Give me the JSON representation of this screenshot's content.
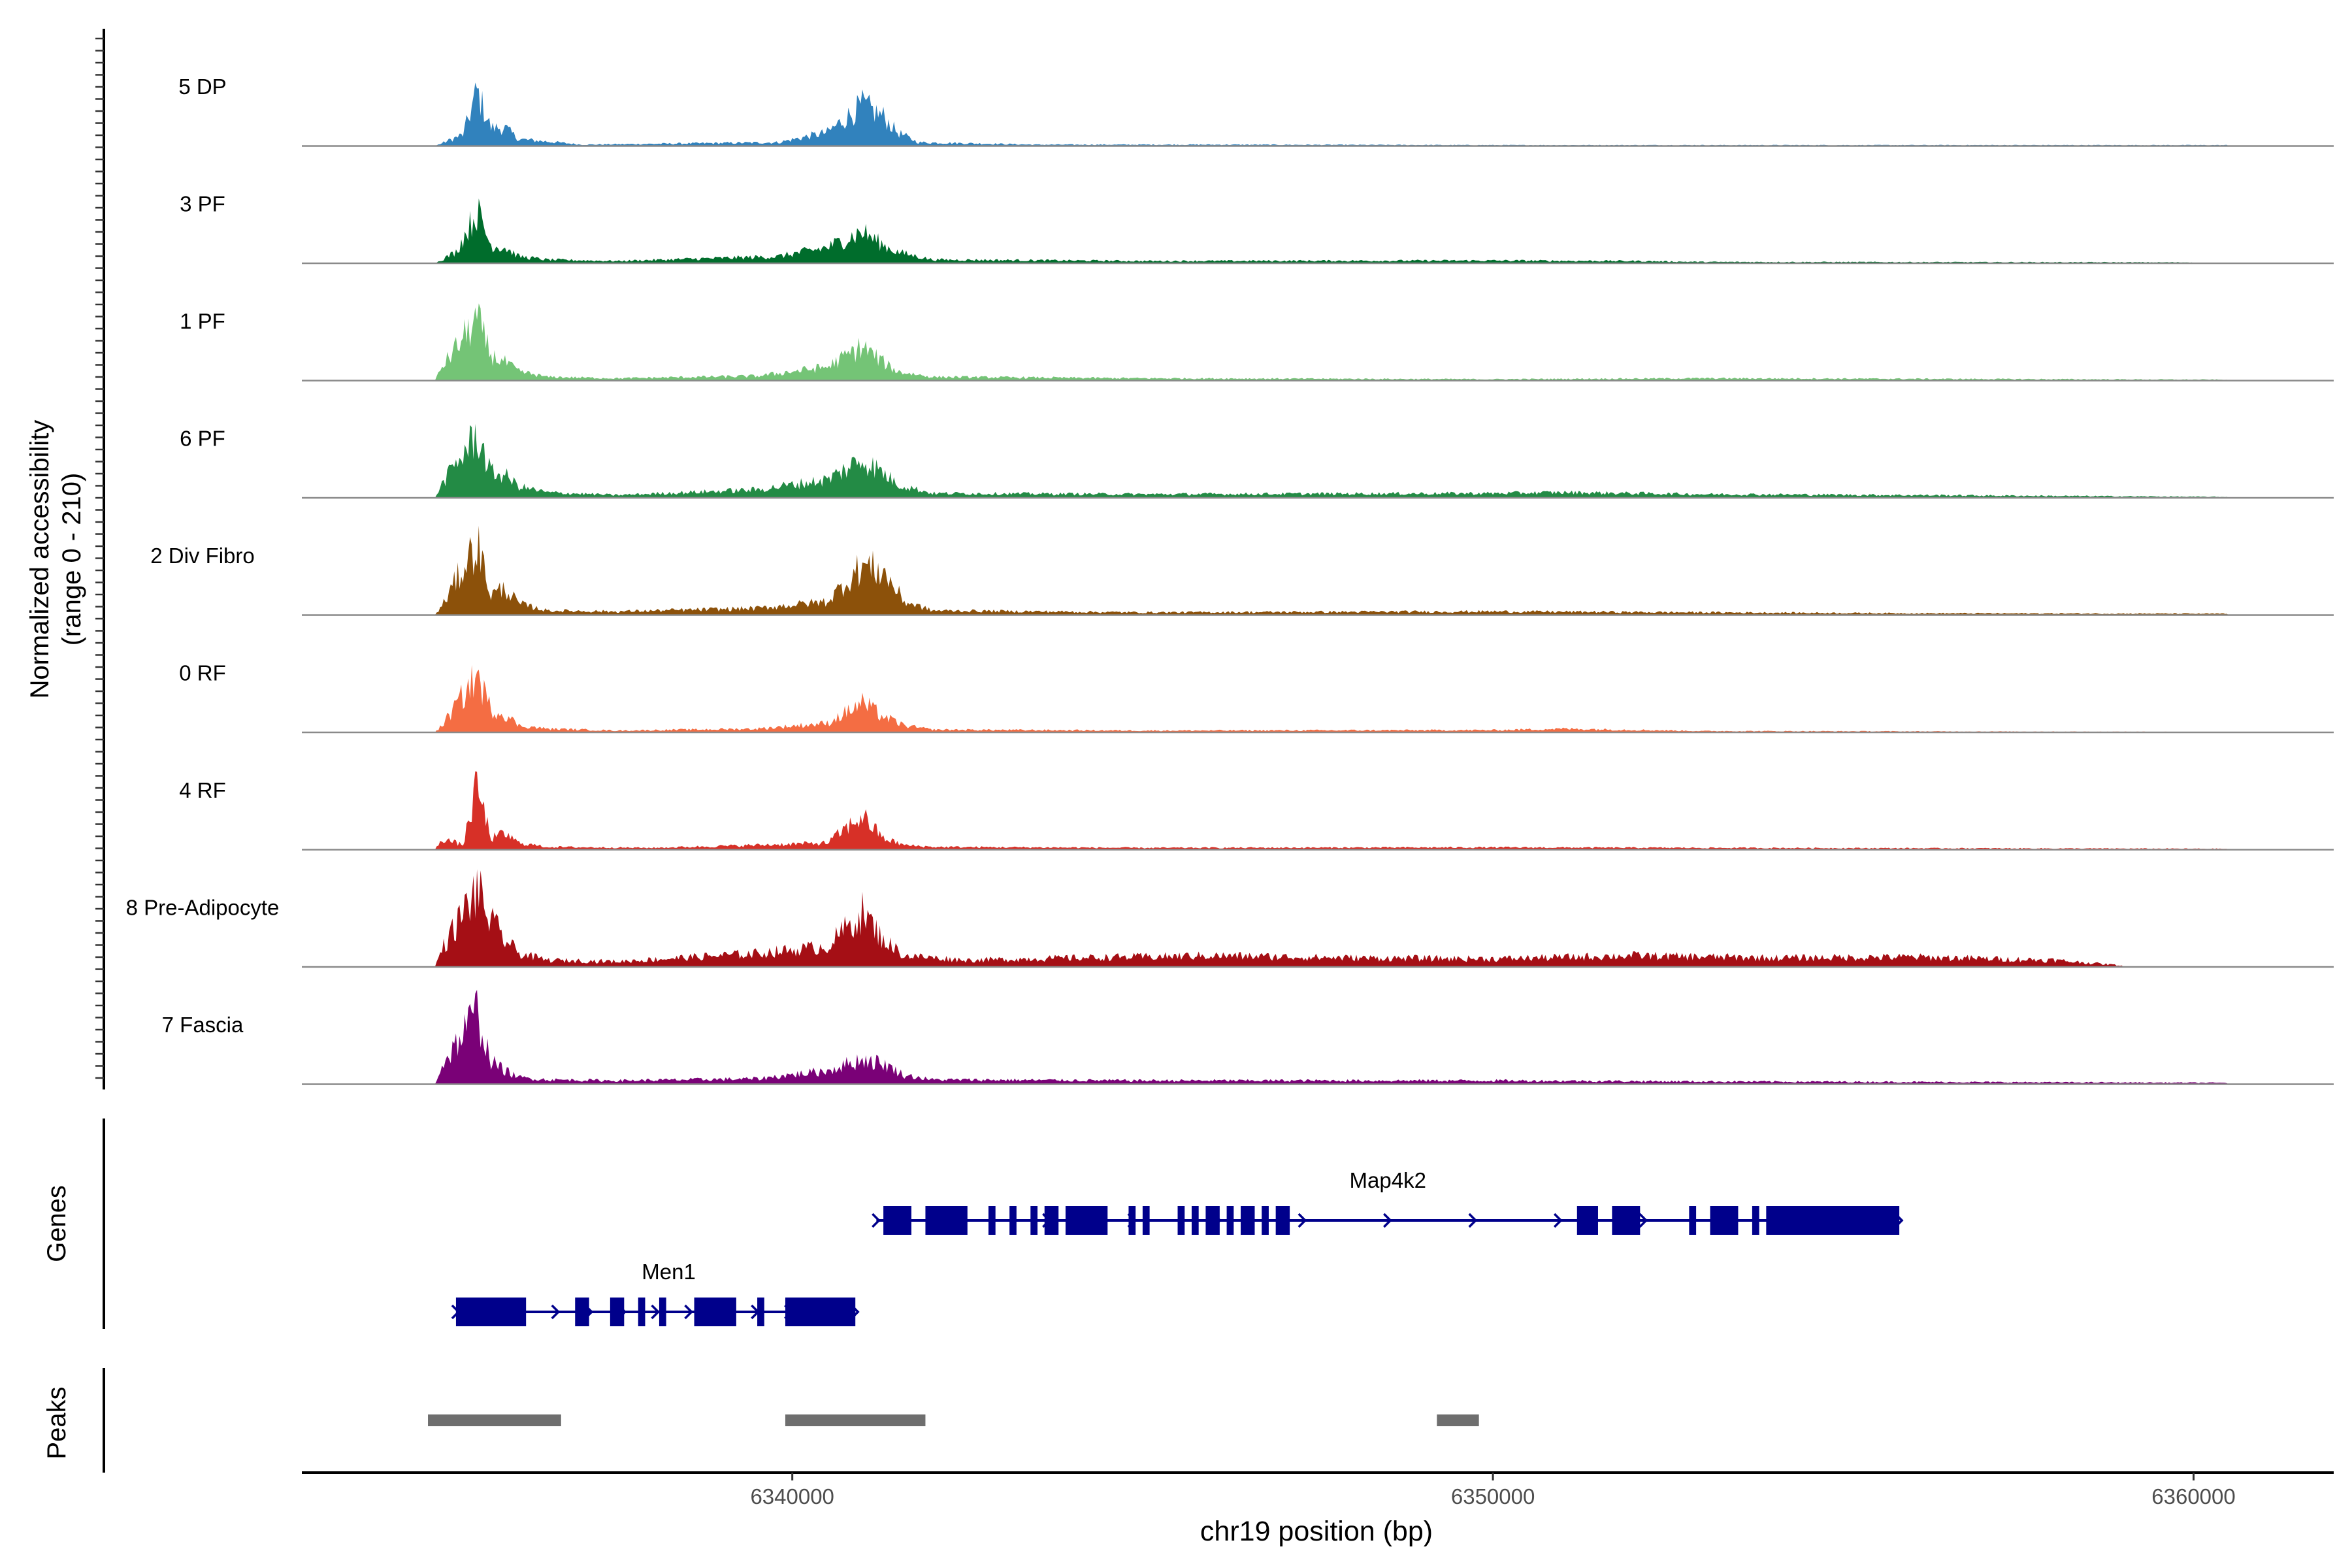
{
  "chart_data": {
    "type": "coverage",
    "chromosome": "chr19",
    "x_range": [
      6333000,
      6362000
    ],
    "xlabel": "chr19 position (bp)",
    "x_ticks": [
      6340000,
      6350000,
      6360000
    ],
    "x_tick_labels": [
      "6340000",
      "6350000",
      "6360000"
    ],
    "ylabel": "Normalized accessibility",
    "ylabel_sub": "(range 0 - 210)",
    "ylim": [
      0,
      210
    ],
    "tracks": [
      {
        "name": "5 DP",
        "color": "#3182bd",
        "profile": [
          [
            6334900,
            0
          ],
          [
            6335300,
            25
          ],
          [
            6335500,
            120
          ],
          [
            6335700,
            40
          ],
          [
            6335900,
            40
          ],
          [
            6336100,
            15
          ],
          [
            6336500,
            10
          ],
          [
            6337000,
            3
          ],
          [
            6339800,
            8
          ],
          [
            6340500,
            30
          ],
          [
            6341000,
            90
          ],
          [
            6341300,
            65
          ],
          [
            6341500,
            30
          ],
          [
            6341800,
            8
          ],
          [
            6343500,
            3
          ],
          [
            6346000,
            3
          ],
          [
            6350000,
            2
          ],
          [
            6360500,
            2
          ]
        ]
      },
      {
        "name": "3 PF",
        "color": "#006d2c",
        "profile": [
          [
            6334900,
            0
          ],
          [
            6335200,
            25
          ],
          [
            6335500,
            115
          ],
          [
            6335700,
            40
          ],
          [
            6335900,
            35
          ],
          [
            6336100,
            15
          ],
          [
            6336500,
            8
          ],
          [
            6337500,
            5
          ],
          [
            6339800,
            15
          ],
          [
            6340500,
            35
          ],
          [
            6341000,
            70
          ],
          [
            6341300,
            40
          ],
          [
            6341500,
            25
          ],
          [
            6342000,
            8
          ],
          [
            6345000,
            5
          ],
          [
            6350000,
            6
          ],
          [
            6352000,
            5
          ],
          [
            6353000,
            3
          ],
          [
            6360000,
            2
          ]
        ]
      },
      {
        "name": "1 PF",
        "color": "#74c476",
        "profile": [
          [
            6334900,
            0
          ],
          [
            6335000,
            30
          ],
          [
            6335500,
            135
          ],
          [
            6335700,
            55
          ],
          [
            6335900,
            40
          ],
          [
            6336100,
            20
          ],
          [
            6336500,
            8
          ],
          [
            6337500,
            5
          ],
          [
            6339500,
            10
          ],
          [
            6340500,
            30
          ],
          [
            6341000,
            75
          ],
          [
            6341300,
            40
          ],
          [
            6341500,
            20
          ],
          [
            6342000,
            8
          ],
          [
            6345000,
            5
          ],
          [
            6350000,
            3
          ],
          [
            6353000,
            5
          ],
          [
            6360500,
            2
          ]
        ]
      },
      {
        "name": "6 PF",
        "color": "#238b45",
        "profile": [
          [
            6334900,
            0
          ],
          [
            6335000,
            30
          ],
          [
            6335500,
            140
          ],
          [
            6335700,
            55
          ],
          [
            6335900,
            50
          ],
          [
            6336100,
            25
          ],
          [
            6336500,
            12
          ],
          [
            6337500,
            6
          ],
          [
            6339500,
            18
          ],
          [
            6340500,
            40
          ],
          [
            6341000,
            85
          ],
          [
            6341300,
            55
          ],
          [
            6341500,
            30
          ],
          [
            6342000,
            10
          ],
          [
            6345000,
            8
          ],
          [
            6350000,
            10
          ],
          [
            6351000,
            12
          ],
          [
            6353000,
            8
          ],
          [
            6356000,
            6
          ],
          [
            6360500,
            2
          ]
        ]
      },
      {
        "name": "2 Div Fibro",
        "color": "#8c510a",
        "profile": [
          [
            6334900,
            0
          ],
          [
            6335000,
            20
          ],
          [
            6335500,
            160
          ],
          [
            6335700,
            45
          ],
          [
            6335900,
            60
          ],
          [
            6336100,
            25
          ],
          [
            6336500,
            10
          ],
          [
            6337500,
            8
          ],
          [
            6339500,
            15
          ],
          [
            6340500,
            30
          ],
          [
            6341000,
            110
          ],
          [
            6341300,
            95
          ],
          [
            6341600,
            30
          ],
          [
            6342000,
            10
          ],
          [
            6345000,
            6
          ],
          [
            6350000,
            8
          ],
          [
            6353000,
            6
          ],
          [
            6356000,
            4
          ],
          [
            6360500,
            3
          ]
        ]
      },
      {
        "name": "0 RF",
        "color": "#f46d43",
        "profile": [
          [
            6334900,
            0
          ],
          [
            6335000,
            15
          ],
          [
            6335500,
            125
          ],
          [
            6335700,
            50
          ],
          [
            6335900,
            40
          ],
          [
            6336100,
            15
          ],
          [
            6336500,
            8
          ],
          [
            6337500,
            4
          ],
          [
            6339500,
            8
          ],
          [
            6340500,
            20
          ],
          [
            6341000,
            65
          ],
          [
            6341300,
            35
          ],
          [
            6341600,
            15
          ],
          [
            6342000,
            6
          ],
          [
            6345000,
            4
          ],
          [
            6350000,
            5
          ],
          [
            6351000,
            8
          ],
          [
            6353000,
            3
          ],
          [
            6360500,
            1
          ]
        ]
      },
      {
        "name": "4 RF",
        "color": "#d73027",
        "profile": [
          [
            6334900,
            0
          ],
          [
            6335000,
            25
          ],
          [
            6335300,
            10
          ],
          [
            6335500,
            140
          ],
          [
            6335700,
            25
          ],
          [
            6335900,
            35
          ],
          [
            6336100,
            15
          ],
          [
            6336500,
            6
          ],
          [
            6338000,
            4
          ],
          [
            6339500,
            10
          ],
          [
            6340500,
            15
          ],
          [
            6341000,
            75
          ],
          [
            6341300,
            25
          ],
          [
            6341600,
            10
          ],
          [
            6342000,
            6
          ],
          [
            6345000,
            4
          ],
          [
            6350000,
            5
          ],
          [
            6353000,
            4
          ],
          [
            6360500,
            2
          ]
        ]
      },
      {
        "name": "8 Pre-Adipocyte",
        "color": "#a50f15",
        "profile": [
          [
            6334900,
            0
          ],
          [
            6335000,
            40
          ],
          [
            6335500,
            170
          ],
          [
            6335700,
            100
          ],
          [
            6335900,
            60
          ],
          [
            6336100,
            30
          ],
          [
            6336500,
            15
          ],
          [
            6337500,
            12
          ],
          [
            6339500,
            30
          ],
          [
            6340500,
            45
          ],
          [
            6341000,
            120
          ],
          [
            6341300,
            60
          ],
          [
            6341600,
            25
          ],
          [
            6342500,
            15
          ],
          [
            6344000,
            20
          ],
          [
            6346000,
            25
          ],
          [
            6348000,
            20
          ],
          [
            6350000,
            18
          ],
          [
            6352000,
            25
          ],
          [
            6354000,
            20
          ],
          [
            6356000,
            22
          ],
          [
            6358000,
            15
          ],
          [
            6359000,
            3
          ]
        ]
      },
      {
        "name": "7 Fascia",
        "color": "#7a0177",
        "profile": [
          [
            6334900,
            0
          ],
          [
            6335000,
            40
          ],
          [
            6335500,
            160
          ],
          [
            6335700,
            50
          ],
          [
            6335900,
            30
          ],
          [
            6336100,
            15
          ],
          [
            6336500,
            10
          ],
          [
            6337500,
            8
          ],
          [
            6339500,
            12
          ],
          [
            6340500,
            30
          ],
          [
            6341000,
            55
          ],
          [
            6341300,
            45
          ],
          [
            6341600,
            20
          ],
          [
            6342000,
            10
          ],
          [
            6345000,
            8
          ],
          [
            6350000,
            8
          ],
          [
            6353000,
            6
          ],
          [
            6356000,
            5
          ],
          [
            6360500,
            3
          ]
        ]
      }
    ],
    "genes": [
      {
        "name": "Men1",
        "start": 6335200,
        "end": 6340900,
        "strand": "+",
        "row": 2,
        "exons": [
          [
            6335200,
            6336200
          ],
          [
            6336900,
            6337100
          ],
          [
            6337400,
            6337600
          ],
          [
            6337800,
            6337900
          ],
          [
            6338100,
            6338200
          ],
          [
            6338600,
            6339200
          ],
          [
            6339500,
            6339600
          ],
          [
            6339900,
            6340900
          ]
        ]
      },
      {
        "name": "Map4k2",
        "start": 6341200,
        "end": 6355800,
        "strand": "+",
        "row": 1,
        "exons": [
          [
            6341300,
            6341700
          ],
          [
            6341900,
            6342500
          ],
          [
            6342800,
            6342900
          ],
          [
            6343100,
            6343200
          ],
          [
            6343400,
            6343500
          ],
          [
            6343600,
            6343800
          ],
          [
            6343900,
            6344500
          ],
          [
            6344800,
            6344900
          ],
          [
            6345000,
            6345100
          ],
          [
            6345500,
            6345600
          ],
          [
            6345700,
            6345800
          ],
          [
            6345900,
            6346100
          ],
          [
            6346200,
            6346300
          ],
          [
            6346400,
            6346600
          ],
          [
            6346700,
            6346800
          ],
          [
            6346900,
            6347100
          ],
          [
            6351200,
            6351500
          ],
          [
            6351700,
            6352100
          ],
          [
            6352800,
            6352900
          ],
          [
            6353100,
            6353500
          ],
          [
            6353700,
            6353800
          ],
          [
            6353900,
            6355800
          ]
        ]
      }
    ],
    "peaks": [
      [
        6334800,
        6336700
      ],
      [
        6339900,
        6341900
      ],
      [
        6349200,
        6349800
      ]
    ],
    "panels": {
      "genes_label": "Genes",
      "peaks_label": "Peaks"
    }
  }
}
